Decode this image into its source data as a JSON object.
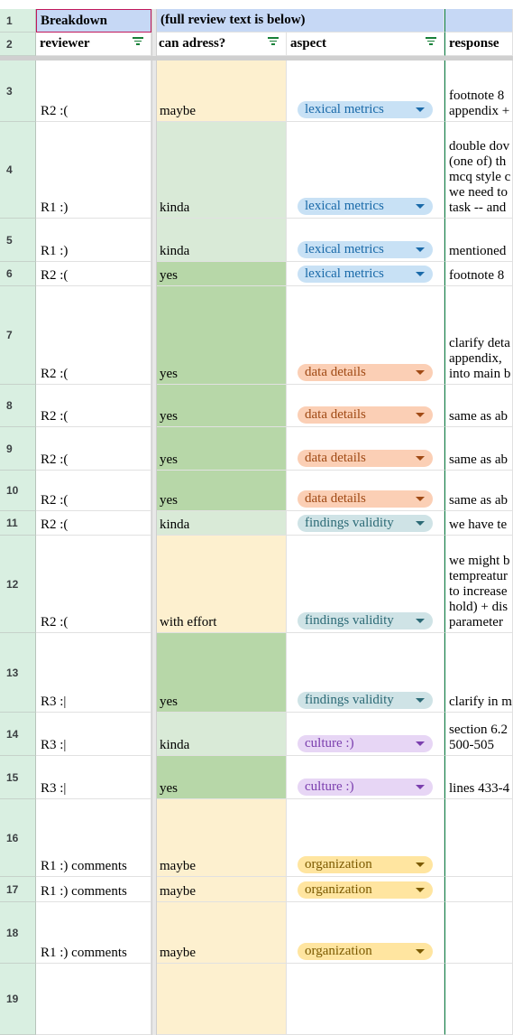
{
  "header1": {
    "rownum": "1",
    "col1": "Breakdown",
    "col2": "(full review text is below)"
  },
  "header2": {
    "rownum": "2",
    "col1": "reviewer",
    "col2": "can adress?",
    "col3": "aspect",
    "col4": "response"
  },
  "rows": [
    {
      "num": "3",
      "reviewer": "R2 :(",
      "can": "maybe",
      "aspect": "lexical metrics",
      "response": "footnote 8\nappendix +"
    },
    {
      "num": "4",
      "reviewer": "R1 :)",
      "can": "kinda",
      "aspect": "lexical metrics",
      "response": "double dov\n(one of) th\nmcq style c\nwe need to\ntask -- and"
    },
    {
      "num": "5",
      "reviewer": "R1 :)",
      "can": "kinda",
      "aspect": "lexical metrics",
      "response": "mentioned"
    },
    {
      "num": "6",
      "reviewer": "R2 :(",
      "can": "yes",
      "aspect": "lexical metrics",
      "response": "footnote 8"
    },
    {
      "num": "7",
      "reviewer": "R2 :(",
      "can": "yes",
      "aspect": "data details",
      "response": "clarify deta\nappendix,\ninto main b"
    },
    {
      "num": "8",
      "reviewer": "R2 :(",
      "can": "yes",
      "aspect": "data details",
      "response": "same as ab"
    },
    {
      "num": "9",
      "reviewer": "R2 :(",
      "can": "yes",
      "aspect": "data details",
      "response": "same as ab"
    },
    {
      "num": "10",
      "reviewer": "R2 :(",
      "can": "yes",
      "aspect": "data details",
      "response": "same as ab"
    },
    {
      "num": "11",
      "reviewer": "R2 :(",
      "can": "kinda",
      "aspect": "findings validity",
      "response": "we have te"
    },
    {
      "num": "12",
      "reviewer": "R2 :(",
      "can": "with effort",
      "aspect": "findings validity",
      "response": "we might b\ntempreatur\nto increase\nhold) + dis\nparameter"
    },
    {
      "num": "13",
      "reviewer": "R3 :|",
      "can": "yes",
      "aspect": "findings validity",
      "response": "clarify in m"
    },
    {
      "num": "14",
      "reviewer": "R3 :|",
      "can": "kinda",
      "aspect": "culture :)",
      "response": "section 6.2\n500-505"
    },
    {
      "num": "15",
      "reviewer": "R3 :|",
      "can": "yes",
      "aspect": "culture :)",
      "response": "lines 433-4"
    },
    {
      "num": "16",
      "reviewer": "R1 :) comments",
      "can": "maybe",
      "aspect": "organization",
      "response": ""
    },
    {
      "num": "17",
      "reviewer": "R1 :) comments",
      "can": "maybe",
      "aspect": "organization",
      "response": ""
    },
    {
      "num": "18",
      "reviewer": "R1 :) comments",
      "can": "maybe",
      "aspect": "organization",
      "response": ""
    },
    {
      "num": "19",
      "reviewer": "",
      "can": "",
      "aspect": "",
      "response": ""
    }
  ],
  "colors": {
    "maybe": "#fdf0cf",
    "kinda": "#d9ead7",
    "yes": "#b7d7a8",
    "with effort": "#fdf0cf",
    "rownum_bg": "#d9efe1",
    "header_bg": "#c6d8f5"
  },
  "aspect_styles": {
    "lexical metrics": "lex",
    "data details": "dat",
    "findings validity": "fin",
    "culture :)": "cul",
    "organization": "org"
  }
}
